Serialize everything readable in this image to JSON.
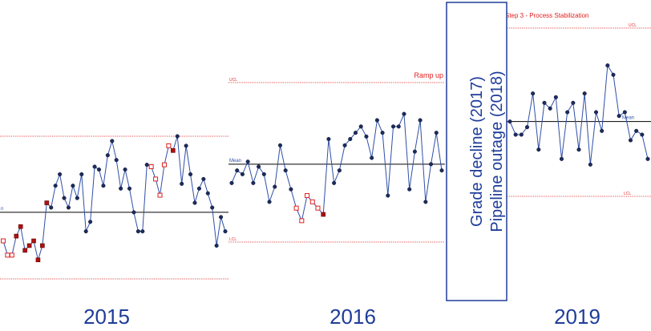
{
  "chart_data": {
    "type": "line",
    "series_color": "#2f4fa8",
    "panels": [
      {
        "year_label": "2015",
        "x_start": 0,
        "x_end": 285,
        "ucl": 1.3,
        "mean": 0.5,
        "lcl": -0.2,
        "ucl_label": "",
        "mean_label": "n",
        "lcl_label": "",
        "phase_label": "",
        "values": [
          0.2,
          0.05,
          0.05,
          0.25,
          0.35,
          0.1,
          0.15,
          0.2,
          0.0,
          0.15,
          0.6,
          0.55,
          0.78,
          0.9,
          0.65,
          0.55,
          0.78,
          0.65,
          0.9,
          0.3,
          0.4,
          0.98,
          0.95,
          0.78,
          1.1,
          1.25,
          1.05,
          0.75,
          0.95,
          0.75,
          0.5,
          0.3,
          0.3,
          1.0,
          0.98,
          0.85,
          0.68,
          1.0,
          1.2,
          1.15,
          1.3,
          0.8,
          1.2,
          0.9,
          0.6,
          0.75,
          0.85,
          0.7,
          0.55,
          0.15,
          0.45,
          0.3
        ],
        "flags": [
          "o",
          "o",
          "o",
          "f",
          "f",
          "f",
          "f",
          "f",
          "f",
          "f",
          "f",
          "n",
          "n",
          "n",
          "n",
          "n",
          "n",
          "n",
          "n",
          "n",
          "n",
          "n",
          "n",
          "n",
          "n",
          "n",
          "n",
          "n",
          "n",
          "n",
          "n",
          "n",
          "n",
          "n",
          "o",
          "o",
          "o",
          "o",
          "o",
          "f",
          "n",
          "n",
          "n",
          "n",
          "n",
          "n",
          "n",
          "n",
          "n",
          "n",
          "n",
          "n"
        ]
      },
      {
        "year_label": "2016",
        "x_start": 285,
        "x_end": 555,
        "ucl": 1.55,
        "mean": 0.9,
        "lcl": 0.28,
        "ucl_label": "UCL",
        "mean_label": "Mean",
        "lcl_label": "LCL",
        "phase_label": "Ramp up",
        "values": [
          0.75,
          0.85,
          0.82,
          0.92,
          0.75,
          0.88,
          0.82,
          0.6,
          0.72,
          1.05,
          0.85,
          0.7,
          0.55,
          0.45,
          0.65,
          0.6,
          0.55,
          0.5,
          1.1,
          0.75,
          0.85,
          1.05,
          1.1,
          1.15,
          1.2,
          1.12,
          0.95,
          1.25,
          1.15,
          0.65,
          1.2,
          1.2,
          1.3,
          0.7,
          1.0,
          1.25,
          0.6,
          0.9,
          1.15,
          0.85
        ],
        "flags": [
          "n",
          "n",
          "n",
          "n",
          "n",
          "n",
          "n",
          "n",
          "n",
          "n",
          "n",
          "n",
          "o",
          "o",
          "o",
          "o",
          "o",
          "f",
          "n",
          "n",
          "n",
          "n",
          "n",
          "n",
          "n",
          "n",
          "n",
          "n",
          "n",
          "n",
          "n",
          "n",
          "n",
          "n",
          "n",
          "n",
          "n",
          "n",
          "n",
          "n"
        ]
      },
      {
        "year_label": "2019",
        "x_start": 632,
        "x_end": 812,
        "ucl": 1.45,
        "mean": 0.95,
        "lcl": 0.55,
        "ucl_label": "UCL",
        "mean_label": "Mean",
        "lcl_label": "LCL",
        "phase_label": "Step 3 - Process Stabilization",
        "values": [
          0.95,
          0.88,
          0.88,
          0.92,
          1.1,
          0.8,
          1.05,
          1.02,
          1.08,
          0.75,
          1.0,
          1.05,
          0.8,
          1.1,
          0.72,
          1.0,
          0.9,
          1.25,
          1.2,
          0.98,
          1.0,
          0.85,
          0.9,
          0.88,
          0.75
        ]
      }
    ]
  },
  "callout": {
    "line1": "Grade decline (2017)",
    "line2": "Pipeline outage (2018)"
  }
}
